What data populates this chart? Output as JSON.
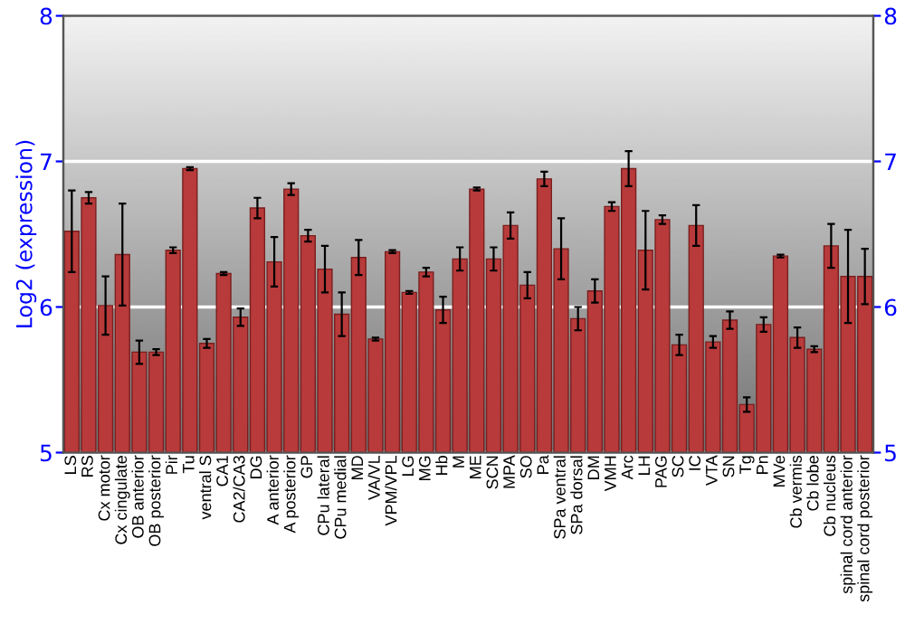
{
  "chart_data": {
    "type": "bar",
    "ylabel": "Log2 (expression)",
    "categories": [
      "LS",
      "RS",
      "Cx motor",
      "Cx cingulate",
      "OB anterior",
      "OB posterior",
      "Pir",
      "Tu",
      "ventral S",
      "CA1",
      "CA2/CA3",
      "DG",
      "A anterior",
      "A posterior",
      "GP",
      "CPu lateral",
      "CPu medial",
      "MD",
      "VA/VL",
      "VPM/VPL",
      "LG",
      "MG",
      "Hb",
      "M",
      "ME",
      "SCN",
      "MPA",
      "SO",
      "Pa",
      "SPa ventral",
      "SPa dorsal",
      "DM",
      "VMH",
      "Arc",
      "LH",
      "PAG",
      "SC",
      "IC",
      "VTA",
      "SN",
      "Tg",
      "Pn",
      "MVe",
      "Cb vermis",
      "Cb lobe",
      "Cb nucleus",
      "spinal cord anterior",
      "spinal cord posterior"
    ],
    "series": [
      {
        "color": "#b83a3a",
        "values": [
          6.52,
          6.75,
          6.01,
          6.36,
          5.69,
          5.69,
          6.39,
          6.95,
          5.75,
          6.23,
          5.93,
          6.68,
          6.31,
          6.81,
          6.49,
          6.26,
          5.95,
          6.34,
          5.78,
          6.38,
          6.1,
          6.24,
          5.98,
          6.33,
          6.81,
          6.33,
          6.56,
          6.15,
          6.88,
          6.4,
          5.92,
          6.11,
          6.69,
          6.95,
          6.39,
          6.6,
          5.74,
          6.56,
          5.76,
          5.91,
          5.33,
          5.88,
          6.35,
          5.79,
          5.71,
          6.42,
          6.21,
          6.21
        ],
        "errors": [
          0.28,
          0.04,
          0.2,
          0.35,
          0.08,
          0.02,
          0.02,
          0.01,
          0.03,
          0.01,
          0.06,
          0.07,
          0.17,
          0.04,
          0.04,
          0.16,
          0.15,
          0.12,
          0.01,
          0.01,
          0.01,
          0.03,
          0.09,
          0.08,
          0.01,
          0.08,
          0.09,
          0.09,
          0.05,
          0.21,
          0.08,
          0.08,
          0.03,
          0.12,
          0.27,
          0.03,
          0.07,
          0.14,
          0.04,
          0.06,
          0.05,
          0.05,
          0.01,
          0.07,
          0.02,
          0.15,
          0.32,
          0.19
        ]
      }
    ],
    "ylim": [
      5,
      8
    ],
    "yticks": [
      5,
      6,
      7,
      8
    ],
    "y2lim": [
      5,
      8
    ],
    "y2ticks": [
      5,
      6,
      7,
      8
    ],
    "grid": "y",
    "legend": false
  }
}
